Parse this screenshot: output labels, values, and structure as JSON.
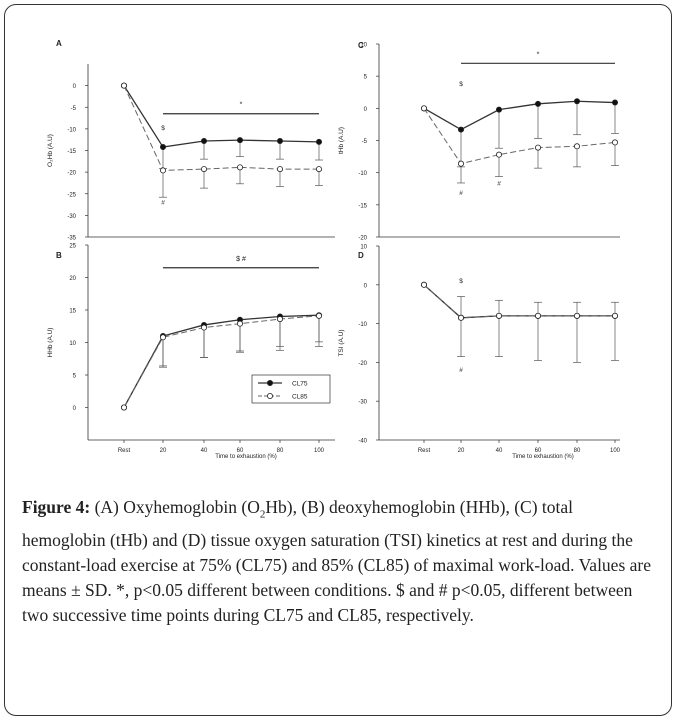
{
  "figure_label": "Figure 4:",
  "caption": {
    "part1": " (A) Oxyhemoglobin (O",
    "sub": "2",
    "part2": "Hb), (B) deoxyhemoglobin (HHb), (C) total hemoglobin (tHb) and (D) tissue oxygen saturation (TSI) kinetics at rest and during the constant-load exercise at 75% (CL75) and 85% (CL85) of maximal work-load. Values are means ± SD. *, p<0.05 different between conditions. $ and # p<0.05, different between two successive time points during CL75 and CL85, respectively."
  },
  "legend": {
    "cl75": "CL75",
    "cl85": "CL85"
  },
  "xlabel": "Time to exhaustion (%)",
  "chart_data": [
    {
      "panel": "A",
      "type": "line",
      "ylabel": "O₂Hb (A.U)",
      "ylim": [
        -35,
        5
      ],
      "yticks": [
        0,
        -5,
        -10,
        -15,
        -20,
        -25,
        -30,
        -35
      ],
      "categories": [
        "Rest",
        "20",
        "40",
        "60",
        "80",
        "100"
      ],
      "series": [
        {
          "name": "CL75",
          "values": [
            0,
            -14.2,
            -12.8,
            -12.6,
            -12.8,
            -13.0
          ],
          "sd": [
            0,
            5.0,
            4.2,
            3.8,
            4.2,
            4.2
          ]
        },
        {
          "name": "CL85",
          "values": [
            0,
            -19.6,
            -19.3,
            -18.9,
            -19.3,
            -19.3
          ],
          "sd": [
            0,
            6.2,
            4.4,
            3.8,
            4.0,
            3.8
          ]
        }
      ],
      "annotations": [
        {
          "text": "*",
          "type": "bar",
          "from": "20",
          "to": "100",
          "y": -6.5
        },
        {
          "text": "$",
          "at": "20",
          "y": -10.3
        },
        {
          "text": "#",
          "at": "20",
          "y": -27.5
        }
      ]
    },
    {
      "panel": "B",
      "type": "line",
      "ylabel": "HHb (A.U)",
      "ylim": [
        -5,
        25
      ],
      "yticks": [
        0,
        5,
        10,
        15,
        20,
        25
      ],
      "categories": [
        "Rest",
        "20",
        "40",
        "60",
        "80",
        "100"
      ],
      "series": [
        {
          "name": "CL75",
          "values": [
            0,
            11.0,
            12.7,
            13.5,
            14.0,
            14.2
          ],
          "sd": [
            0,
            4.6,
            5.0,
            5.0,
            5.2,
            4.8
          ]
        },
        {
          "name": "CL85",
          "values": [
            0,
            10.8,
            12.3,
            12.9,
            13.6,
            14.1
          ],
          "sd": [
            0,
            4.6,
            4.6,
            4.2,
            4.2,
            4.0
          ]
        }
      ],
      "annotations": [
        {
          "text": "$ #",
          "type": "bar",
          "from": "20",
          "to": "100",
          "y": 21.5
        }
      ]
    },
    {
      "panel": "C",
      "type": "line",
      "ylabel": "tHb (A.U)",
      "ylim": [
        -20,
        10
      ],
      "yticks": [
        10,
        5,
        0,
        -5,
        -10,
        -15,
        -20
      ],
      "categories": [
        "Rest",
        "20",
        "40",
        "60",
        "80",
        "100"
      ],
      "series": [
        {
          "name": "CL75",
          "values": [
            0,
            -3.3,
            -0.2,
            0.7,
            1.1,
            0.9
          ],
          "sd": [
            0,
            5.8,
            6.0,
            5.4,
            5.2,
            4.8
          ]
        },
        {
          "name": "CL85",
          "values": [
            0,
            -8.6,
            -7.2,
            -6.1,
            -5.9,
            -5.3
          ],
          "sd": [
            0,
            3.0,
            3.4,
            3.2,
            3.2,
            3.6
          ]
        }
      ],
      "annotations": [
        {
          "text": "*",
          "type": "bar",
          "from": "20",
          "to": "100",
          "y": 7.0
        },
        {
          "text": "$",
          "at": "20",
          "y": 3.5
        },
        {
          "text": "#",
          "at": "20",
          "y": -13.5
        },
        {
          "text": "#",
          "at": "40",
          "y": -12.0
        }
      ]
    },
    {
      "panel": "D",
      "type": "line",
      "ylabel": "TSI (A.U)",
      "ylim": [
        -40,
        10
      ],
      "yticks": [
        10,
        0,
        -10,
        -20,
        -30,
        -40
      ],
      "categories": [
        "Rest",
        "20",
        "40",
        "60",
        "80",
        "100"
      ],
      "series": [
        {
          "name": "CL75",
          "values": [
            0,
            -8.5,
            -8.0,
            -8.0,
            -8.0,
            -8.0
          ],
          "sd": [
            0,
            5.5,
            4.0,
            3.5,
            3.5,
            3.5
          ]
        },
        {
          "name": "CL85",
          "values": [
            0,
            -8.5,
            -8.0,
            -8.0,
            -8.0,
            -8.0
          ],
          "sd": [
            0,
            10.0,
            10.5,
            11.5,
            12.0,
            11.5
          ]
        }
      ],
      "annotations": [
        {
          "text": "$",
          "at": "20",
          "y": 0.5
        },
        {
          "text": "#",
          "at": "20",
          "y": -22.5
        }
      ]
    }
  ]
}
